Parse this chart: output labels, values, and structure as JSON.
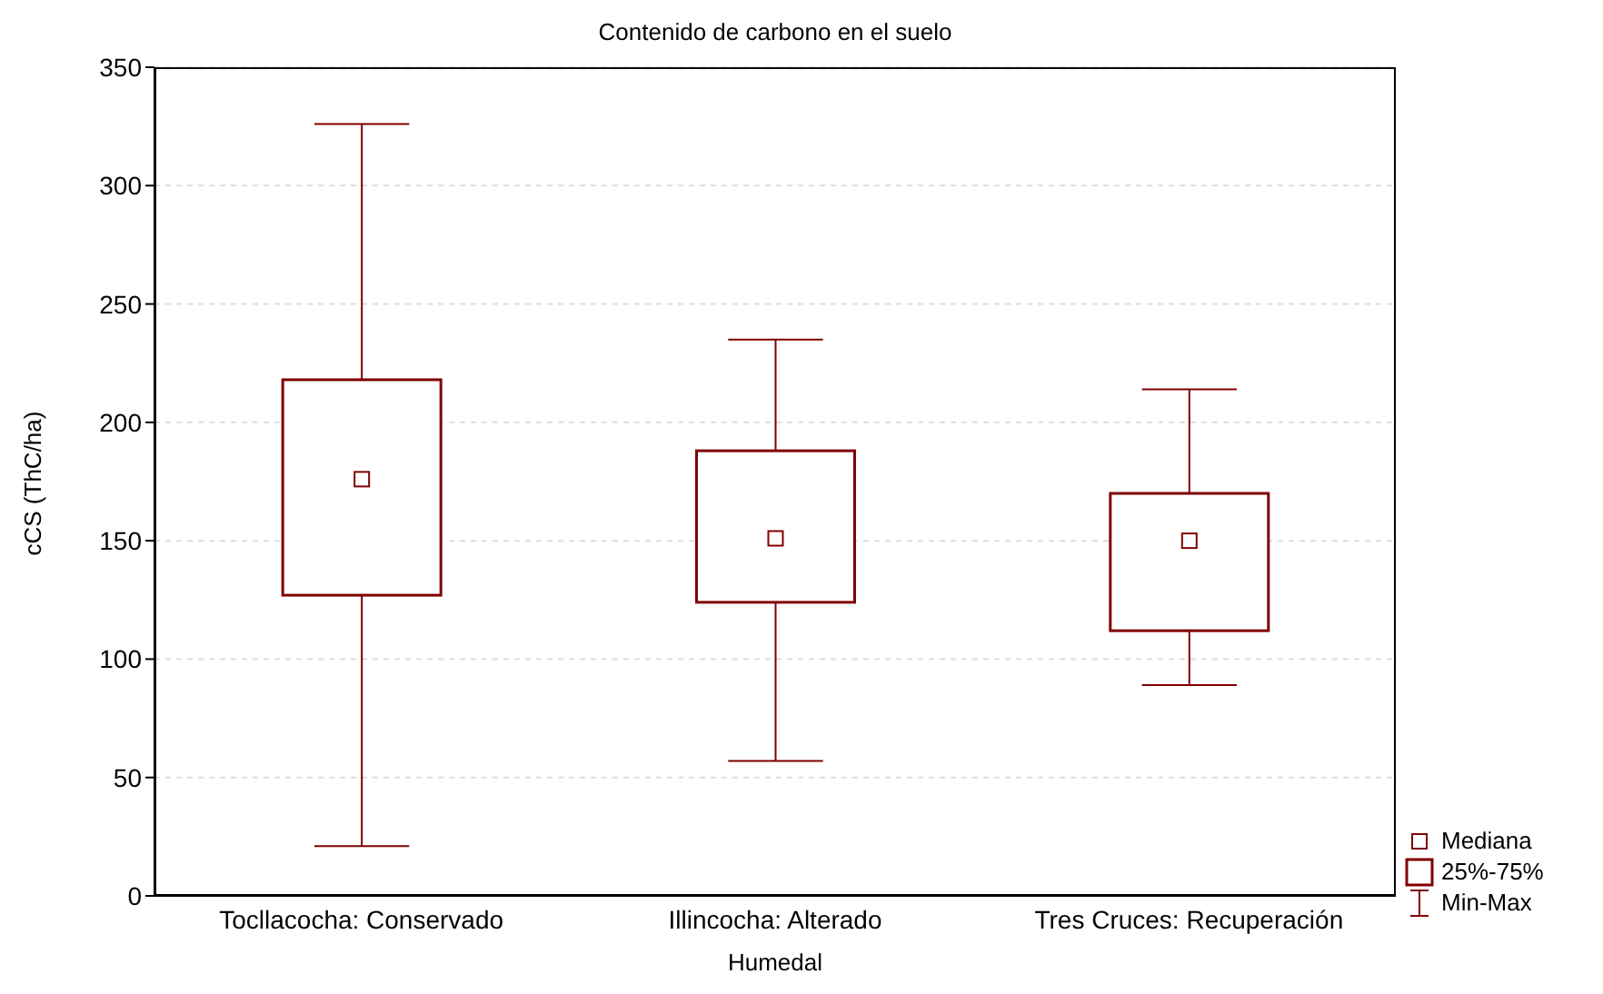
{
  "chart_data": {
    "type": "box",
    "title": "Contenido de carbono en el suelo",
    "xlabel": "Humedal",
    "ylabel": "cCS (ThC/ha)",
    "categories": [
      "Tocllacocha: Conservado",
      "Illincocha: Alterado",
      "Tres Cruces: Recuperación"
    ],
    "color": "#800000",
    "boxes": [
      {
        "low": 21,
        "q1": 127,
        "median": 176,
        "q3": 218,
        "high": 326
      },
      {
        "low": 57,
        "q1": 124,
        "median": 151,
        "q3": 188,
        "high": 235
      },
      {
        "low": 89,
        "q1": 112,
        "median": 150,
        "q3": 170,
        "high": 214
      }
    ],
    "ylim": [
      0,
      350
    ],
    "yticks": [
      0,
      50,
      100,
      150,
      200,
      250,
      300,
      350
    ],
    "grid": "y",
    "annotations": [
      "Mediana",
      "25%-75%",
      "Min-Max"
    ]
  }
}
